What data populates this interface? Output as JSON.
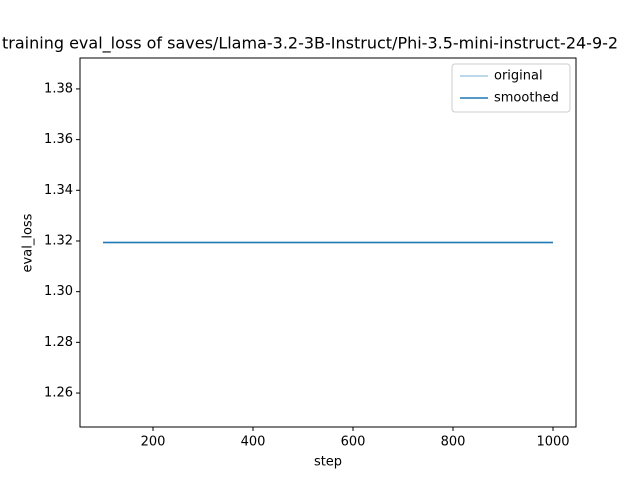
{
  "chart_data": {
    "type": "line",
    "title": "training eval_loss of saves/Llama-3.2-3B-Instruct/Phi-3.5-mini-instruct-24-9-2",
    "xlabel": "step",
    "ylabel": "eval_loss",
    "x": [
      100,
      1000
    ],
    "series": [
      {
        "name": "original",
        "color": "#a6cbe6",
        "values": [
          1.3194,
          1.3194
        ]
      },
      {
        "name": "smoothed",
        "color": "#1f77b4",
        "values": [
          1.3194,
          1.3194
        ]
      }
    ],
    "xlim": [
      54,
      1046
    ],
    "xticks": [
      200,
      400,
      600,
      800,
      1000
    ],
    "ylim": [
      1.2466,
      1.3922
    ],
    "yticks": [
      1.26,
      1.28,
      1.3,
      1.32,
      1.34,
      1.36,
      1.38
    ],
    "legend": "upper right"
  }
}
